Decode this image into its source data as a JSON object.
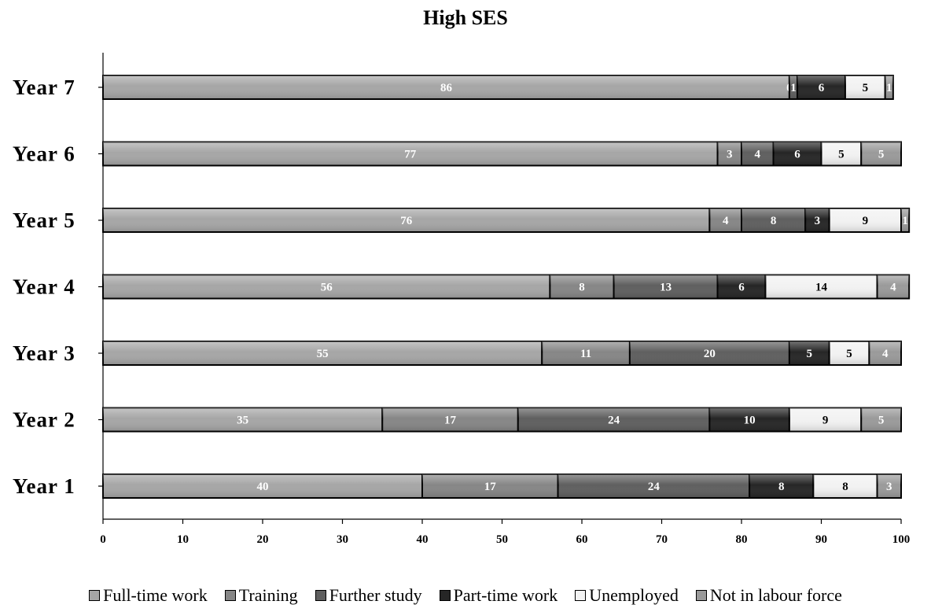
{
  "chart_data": {
    "type": "bar",
    "orientation": "horizontal",
    "stacked": true,
    "title": "High SES",
    "categories": [
      "Year 7",
      "Year 6",
      "Year 5",
      "Year 4",
      "Year 3",
      "Year 2",
      "Year 1"
    ],
    "series": [
      {
        "name": "Full-time work",
        "color": "#a6a6a6",
        "text_color": "#ffffff",
        "values": [
          86,
          77,
          76,
          56,
          55,
          35,
          40
        ]
      },
      {
        "name": "Training",
        "color": "#868686",
        "text_color": "#ffffff",
        "values": [
          0,
          3,
          4,
          8,
          11,
          17,
          17
        ]
      },
      {
        "name": "Further study",
        "color": "#5f5f5f",
        "text_color": "#ffffff",
        "values": [
          1,
          4,
          8,
          13,
          20,
          24,
          24
        ]
      },
      {
        "name": "Part-time work",
        "color": "#262626",
        "text_color": "#ffffff",
        "values": [
          6,
          6,
          3,
          6,
          5,
          10,
          8
        ]
      },
      {
        "name": "Unemployed",
        "color": "#f2f2f2",
        "text_color": "#000000",
        "values": [
          5,
          5,
          9,
          14,
          5,
          9,
          8
        ]
      },
      {
        "name": "Not in labour force",
        "color": "#9a9a9a",
        "text_color": "#ffffff",
        "values": [
          1,
          5,
          1,
          4,
          4,
          5,
          3
        ]
      }
    ],
    "xlim": [
      0,
      100
    ],
    "xticks": [
      0,
      10,
      20,
      30,
      40,
      50,
      60,
      70,
      80,
      90,
      100
    ],
    "grid": false,
    "legend_position": "bottom"
  }
}
